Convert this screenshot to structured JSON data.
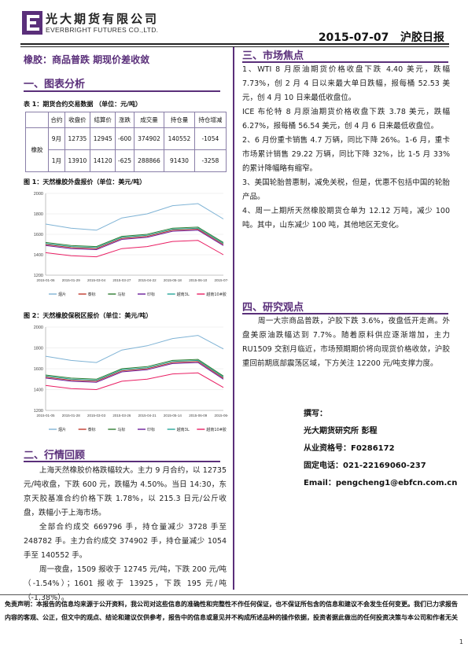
{
  "header": {
    "company_cn": "光大期货有限公司",
    "company_en": "EVERBRIGHT FUTURES CO.,LTD.",
    "date": "2015-07-07",
    "report_title": "沪胶日报"
  },
  "headline": "橡胶：商品普跌 期现价差收敛",
  "section1": {
    "title": "一、图表分析",
    "table_caption": "表 1：期货合约交易数据 （单位：元/吨）",
    "table": {
      "headers": [
        "合约",
        "收盘价",
        "结算价",
        "涨跌",
        "成交量",
        "持仓量",
        "持仓增减"
      ],
      "row_label": "橡胶",
      "rows": [
        [
          "9月",
          "12735",
          "12945",
          "-600",
          "374902",
          "140552",
          "-1054"
        ],
        [
          "1月",
          "13910",
          "14120",
          "-625",
          "288866",
          "91430",
          "-3258"
        ]
      ]
    },
    "fig1_caption": "图 1：天然橡胶外盘报价（单位：美元/吨）",
    "fig2_caption": "图 2：天然橡胶保税区报价（单位：美元/吨）"
  },
  "chart_data": [
    {
      "type": "line",
      "title": "",
      "x": [
        "2015-01-06",
        "2015-01-29",
        "2015-03-04",
        "2015-03-27",
        "2015-04-22",
        "2015-05-18",
        "2015-06-10",
        "2015-07-06"
      ],
      "ylim": [
        1200,
        2000
      ],
      "yticks": [
        "1200",
        "1400",
        "1600",
        "1800",
        "2000"
      ],
      "series": [
        {
          "name": "烟片",
          "color": "#7fb3d5",
          "values": [
            1700,
            1660,
            1640,
            1760,
            1800,
            1880,
            1900,
            1750
          ]
        },
        {
          "name": "泰标",
          "color": "#c0392b",
          "values": [
            1500,
            1470,
            1460,
            1560,
            1580,
            1640,
            1650,
            1500
          ]
        },
        {
          "name": "马标",
          "color": "#2e7d32",
          "values": [
            1520,
            1490,
            1480,
            1580,
            1600,
            1660,
            1670,
            1520
          ]
        },
        {
          "name": "印标",
          "color": "#6a1b9a",
          "values": [
            1490,
            1460,
            1450,
            1550,
            1570,
            1630,
            1640,
            1490
          ]
        },
        {
          "name": "越南3L",
          "color": "#26a69a",
          "values": [
            1510,
            1480,
            1470,
            1570,
            1590,
            1650,
            1660,
            1510
          ]
        },
        {
          "name": "越南10#胶",
          "color": "#e91e63",
          "values": [
            1420,
            1390,
            1380,
            1460,
            1480,
            1530,
            1540,
            1400
          ]
        }
      ],
      "legend": "bottom"
    },
    {
      "type": "line",
      "title": "",
      "x": [
        "2015-01-05",
        "2015-01-28",
        "2015-03-03",
        "2015-03-26",
        "2015-04-21",
        "2015-05-14",
        "2015-06-09",
        "2015-06-24"
      ],
      "ylim": [
        1200,
        2000
      ],
      "yticks": [
        "1200",
        "1400",
        "1600",
        "1800",
        "2000"
      ],
      "series": [
        {
          "name": "烟片",
          "color": "#7fb3d5",
          "values": [
            1720,
            1680,
            1660,
            1780,
            1820,
            1890,
            1920,
            1790
          ]
        },
        {
          "name": "泰标",
          "color": "#c0392b",
          "values": [
            1520,
            1490,
            1480,
            1580,
            1600,
            1660,
            1670,
            1510
          ]
        },
        {
          "name": "马标",
          "color": "#2e7d32",
          "values": [
            1540,
            1510,
            1500,
            1600,
            1620,
            1680,
            1690,
            1530
          ]
        },
        {
          "name": "印标",
          "color": "#6a1b9a",
          "values": [
            1510,
            1480,
            1470,
            1570,
            1590,
            1650,
            1660,
            1500
          ]
        },
        {
          "name": "越南3L",
          "color": "#26a69a",
          "values": [
            1530,
            1500,
            1490,
            1590,
            1610,
            1670,
            1680,
            1520
          ]
        },
        {
          "name": "越南10#胶",
          "color": "#e91e63",
          "values": [
            1440,
            1410,
            1400,
            1480,
            1500,
            1550,
            1560,
            1420
          ]
        }
      ],
      "legend": "bottom"
    }
  ],
  "section2": {
    "title": "二、行情回顾",
    "paragraphs": [
      "上海天然橡胶价格跌幅较大。主力 9 月合约，以 12735 元/吨收盘，下跌 600 元，跌幅为 4.50%。当日 14:30，东京天胶基准合约价格下跌 1.78%，以 215.3 日元/公斤收盘，跌幅小于上海市场。",
      "全部合约成交 669796 手，持仓量减少 3728 手至 248782 手。主力合约成交 374902 手，持仓量减少 1054 手至 140552 手。",
      "周一夜盘，1509 报收于 12745 元/吨，下跌 200 元/吨（-1.54%）；1601 报收于 13925，下跌 195 元/吨（-1.38%）。"
    ]
  },
  "section3": {
    "title": "三、市场焦点",
    "items": [
      "1、WTI 8 月原油期货价格收盘下跌 4.40 美元，跌幅 7.73%，创 2 月 4 日以来最大单日跌幅，报每桶 52.53 美元，创 4 月 10 日来最低收盘位。",
      "ICE 布伦特 8 月原油期货价格收盘下跌 3.78 美元，跌幅 6.27%，报每桶 56.54 美元，创 4 月 6 日来最低收盘位。",
      "2、6 月份重卡销售 4.7 万辆，同比下降 26%。1-6 月，重卡市场累计销售 29.22 万辆，同比下降 32%，比 1-5 月 33%的累计降幅略有缩窄。",
      "3、美国轮胎普惠制，减免关税，但是，优惠不包括中国的轮胎产品。",
      "4、周一上期所天然橡胶期货仓单为 12.12 万吨，减少 100 吨。其中，山东减少 100 吨，其他地区无变化。"
    ]
  },
  "section4": {
    "title": "四、研究观点",
    "paragraph": "周一大宗商品普跌，沪胶下跌 3.6%，夜盘低开走高。外盘美原油跌幅达到 7.7%。随着原料供应逐渐增加，主力 RU1509 交割月临近，市场预期期价将向现货价格收敛，沪胶重回前期底部震荡区域，下方关注 12200 元/吨支撑力度。"
  },
  "author": {
    "label1": "撰写：",
    "line2": "光大期货研究所 彭程",
    "line3": "从业资格号：F0286172",
    "line4": "固定电话：021-22169060-237",
    "line5": "Email：pengcheng1@ebfcn.com.cn"
  },
  "disclaimer": "免责声明：本报告的信息均来源于公开资料，我公司对这些信息的准确性和完整性不作任何保证，也不保证所包含的信息和建议不会发生任何变更。我们已力求报告内容的客观、公正，但文中的观点、结论和建议仅供参考，报告中的信息或意见并不构成所述品种的操作依据，投资者据此做出的任何投资决策与本公司和作者无关",
  "page_number": "1",
  "colors": {
    "accent": "#5a2f7a"
  }
}
